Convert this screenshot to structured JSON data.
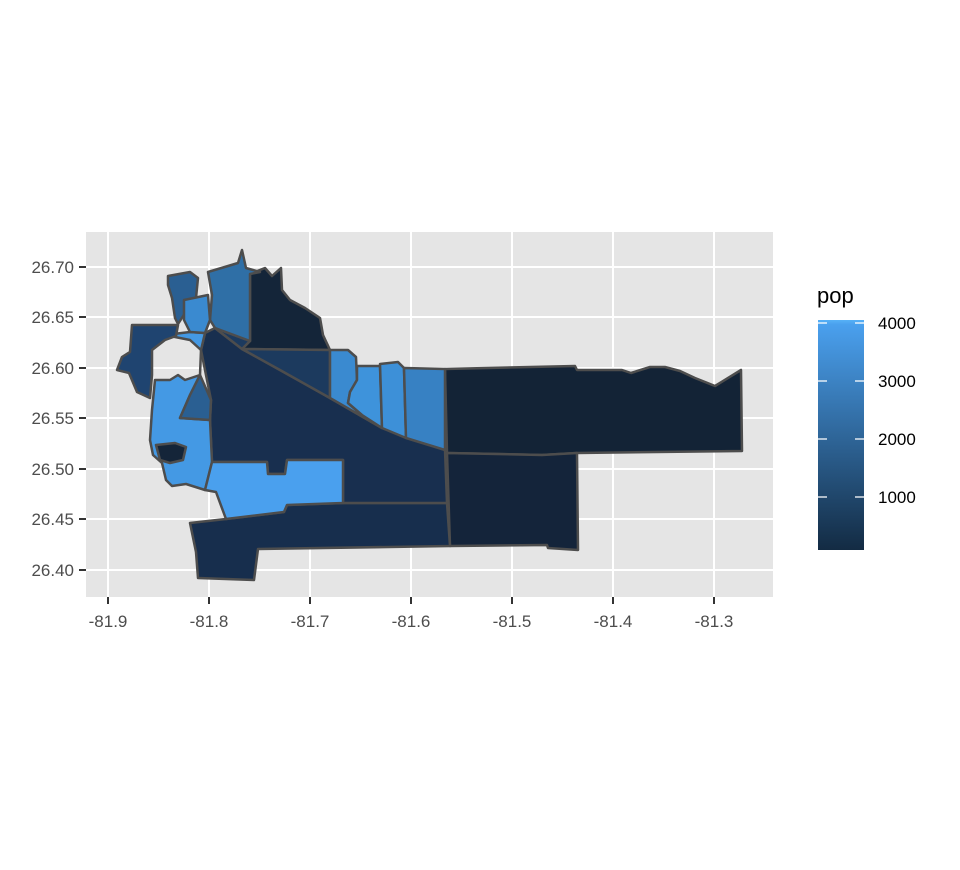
{
  "chart_data": {
    "type": "choropleth map",
    "title": "",
    "xlabel": "",
    "ylabel": "",
    "x_ticks": [
      "-81.9",
      "-81.8",
      "-81.7",
      "-81.6",
      "-81.5",
      "-81.4",
      "-81.3"
    ],
    "y_ticks": [
      "26.40",
      "26.45",
      "26.50",
      "26.55",
      "26.60",
      "26.65",
      "26.70"
    ],
    "xlim": [
      -81.92,
      -81.24
    ],
    "ylim": [
      26.38,
      26.73
    ],
    "grid": true,
    "legend": {
      "title": "pop",
      "labels": [
        "4000",
        "3000",
        "2000",
        "1000"
      ],
      "placement": "right",
      "color_low": "#132B43",
      "color_high": "#56B1F7"
    }
  },
  "colors": {
    "panel_background": "#e5e5e5",
    "grid_line": "#ffffff",
    "region_outline": "#4d4d4d"
  }
}
